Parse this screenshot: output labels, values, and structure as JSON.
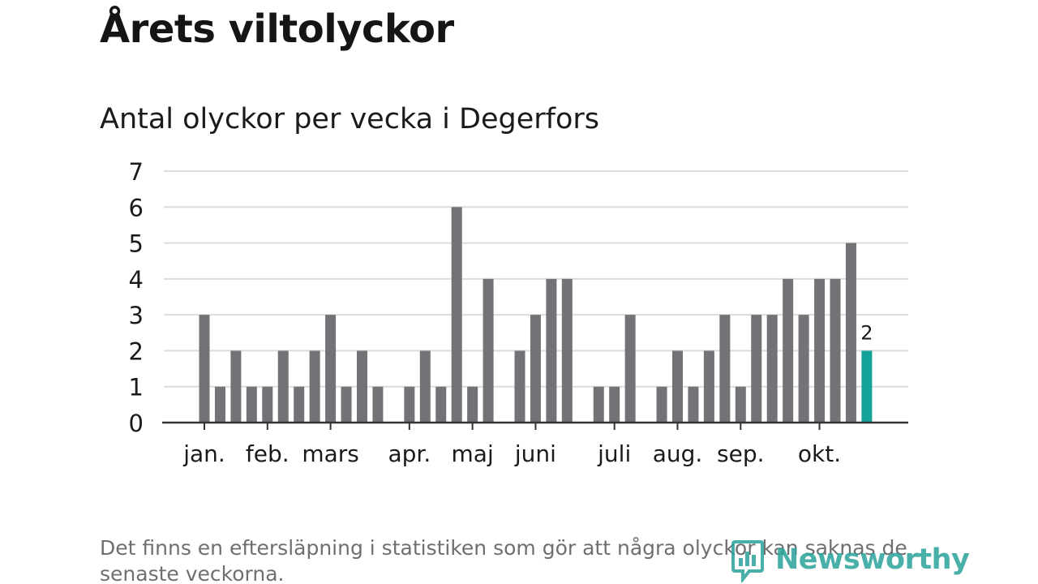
{
  "title": "Årets viltolyckor",
  "subtitle": "Antal olyckor per vecka i Degerfors",
  "footnote": "Det finns en eftersläpning i statistiken som gör att några olyckor kan saknas de senaste veckorna.",
  "brand": {
    "name": "Newsworthy",
    "icon": "newsworthy-logo-icon",
    "color": "#2aa39b"
  },
  "colors": {
    "bar": "#737277",
    "highlight": "#14a39a",
    "grid": "#dcdcdc",
    "axis": "#333333",
    "text": "#1a1a1a"
  },
  "chart_data": {
    "type": "bar",
    "ylim": [
      0,
      7
    ],
    "y_ticks": [
      "0",
      "1",
      "2",
      "3",
      "4",
      "5",
      "6",
      "7"
    ],
    "grid": true,
    "x": [
      1,
      2,
      3,
      4,
      5,
      6,
      7,
      8,
      9,
      10,
      11,
      12,
      13,
      14,
      15,
      16,
      17,
      18,
      19,
      20,
      21,
      22,
      23,
      24,
      25,
      26,
      27,
      28,
      29,
      30,
      31,
      32,
      33,
      34,
      35,
      36,
      37,
      38,
      39,
      40,
      41,
      42,
      43
    ],
    "values": [
      3,
      1,
      2,
      1,
      1,
      2,
      1,
      2,
      3,
      1,
      2,
      1,
      0,
      1,
      2,
      1,
      6,
      1,
      4,
      0,
      2,
      3,
      4,
      4,
      0,
      1,
      1,
      3,
      0,
      1,
      2,
      1,
      2,
      3,
      1,
      3,
      3,
      4,
      3,
      4,
      4,
      5,
      2
    ],
    "highlight_index": 42,
    "highlight_label": "2",
    "month_labels": [
      {
        "label": "jan.",
        "week": 1
      },
      {
        "label": "feb.",
        "week": 5
      },
      {
        "label": "mars",
        "week": 9
      },
      {
        "label": "apr.",
        "week": 14
      },
      {
        "label": "maj",
        "week": 18
      },
      {
        "label": "juni",
        "week": 22
      },
      {
        "label": "juli",
        "week": 27
      },
      {
        "label": "aug.",
        "week": 31
      },
      {
        "label": "sep.",
        "week": 35
      },
      {
        "label": "okt.",
        "week": 40
      }
    ]
  }
}
